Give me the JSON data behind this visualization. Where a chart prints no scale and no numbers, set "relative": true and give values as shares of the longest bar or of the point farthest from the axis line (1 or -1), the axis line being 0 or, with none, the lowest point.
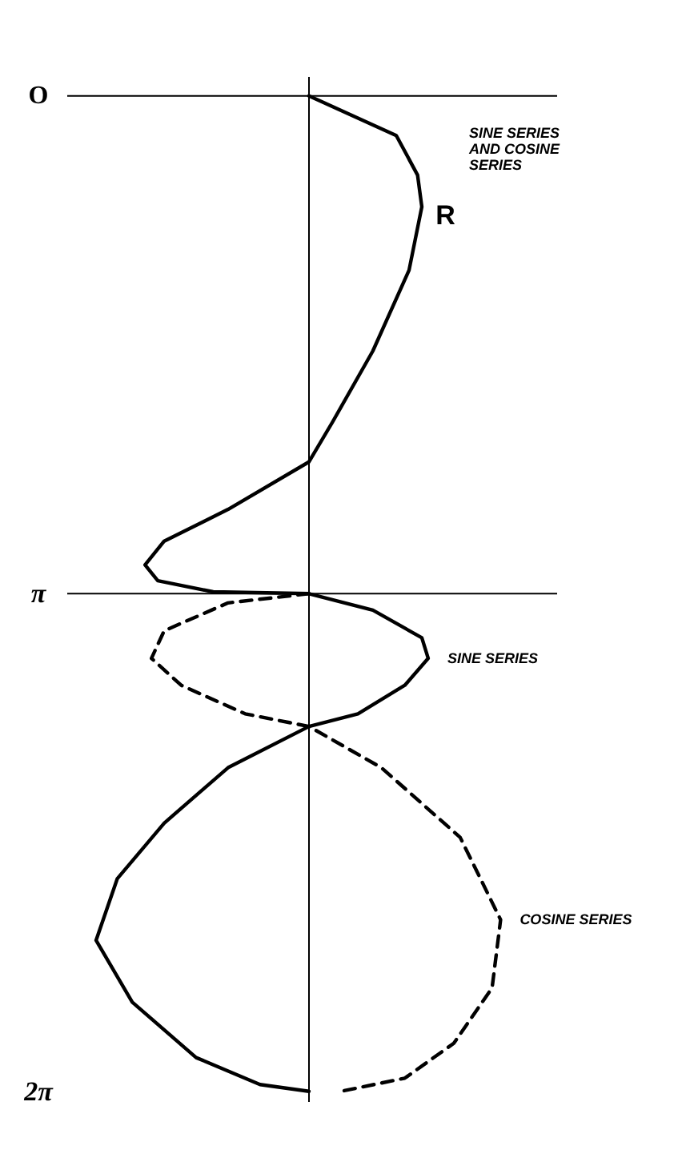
{
  "chart_data": {
    "type": "line",
    "orientation": "horizontal",
    "relative": true,
    "ylim": [
      6.35,
      -0.12
    ],
    "yticks": [
      {
        "value": 0,
        "label": "O"
      },
      {
        "value": 3.1416,
        "label": "π"
      },
      {
        "value": 6.2832,
        "label": "2π"
      }
    ],
    "series": [
      {
        "name": "SINE SERIES",
        "color": "#000000",
        "line_style": "solid",
        "x": [
          0,
          0.25,
          0.5,
          0.7,
          1.1,
          1.61,
          2.06,
          2.31,
          2.61,
          2.81,
          2.96,
          3.06,
          3.13,
          3.1416,
          3.246,
          3.42,
          3.55,
          3.72,
          3.9,
          3.98,
          4.24,
          4.59,
          4.94,
          5.33,
          5.72,
          6.07,
          6.24,
          6.2832
        ],
        "values": [
          0,
          0.41,
          0.51,
          0.53,
          0.47,
          0.3,
          0.11,
          0,
          -0.38,
          -0.68,
          -0.77,
          -0.71,
          -0.45,
          0,
          0.3,
          0.53,
          0.56,
          0.45,
          0.23,
          0,
          -0.38,
          -0.68,
          -0.9,
          -1,
          -0.83,
          -0.53,
          -0.23,
          0
        ]
      },
      {
        "name": "COSINE SERIES",
        "color": "#000000",
        "line_style": "dashed",
        "x": [
          3.1416,
          3.2,
          3.376,
          3.55,
          3.72,
          3.9,
          3.98,
          4.24,
          4.68,
          5.2,
          5.63,
          5.98,
          6.2,
          6.2832
        ],
        "values": [
          0,
          -0.38,
          -0.68,
          -0.74,
          -0.6,
          -0.3,
          0,
          0.34,
          0.71,
          0.9,
          0.86,
          0.68,
          0.45,
          0.15
        ]
      }
    ],
    "ref_lines": [
      {
        "axis": "y",
        "value": 0
      },
      {
        "axis": "y",
        "value": 3.1416
      }
    ],
    "annotations": [
      "SINE SERIES AND COSINE SERIES",
      {
        "text": "R",
        "x": 0.55,
        "y": 0.75
      }
    ]
  }
}
